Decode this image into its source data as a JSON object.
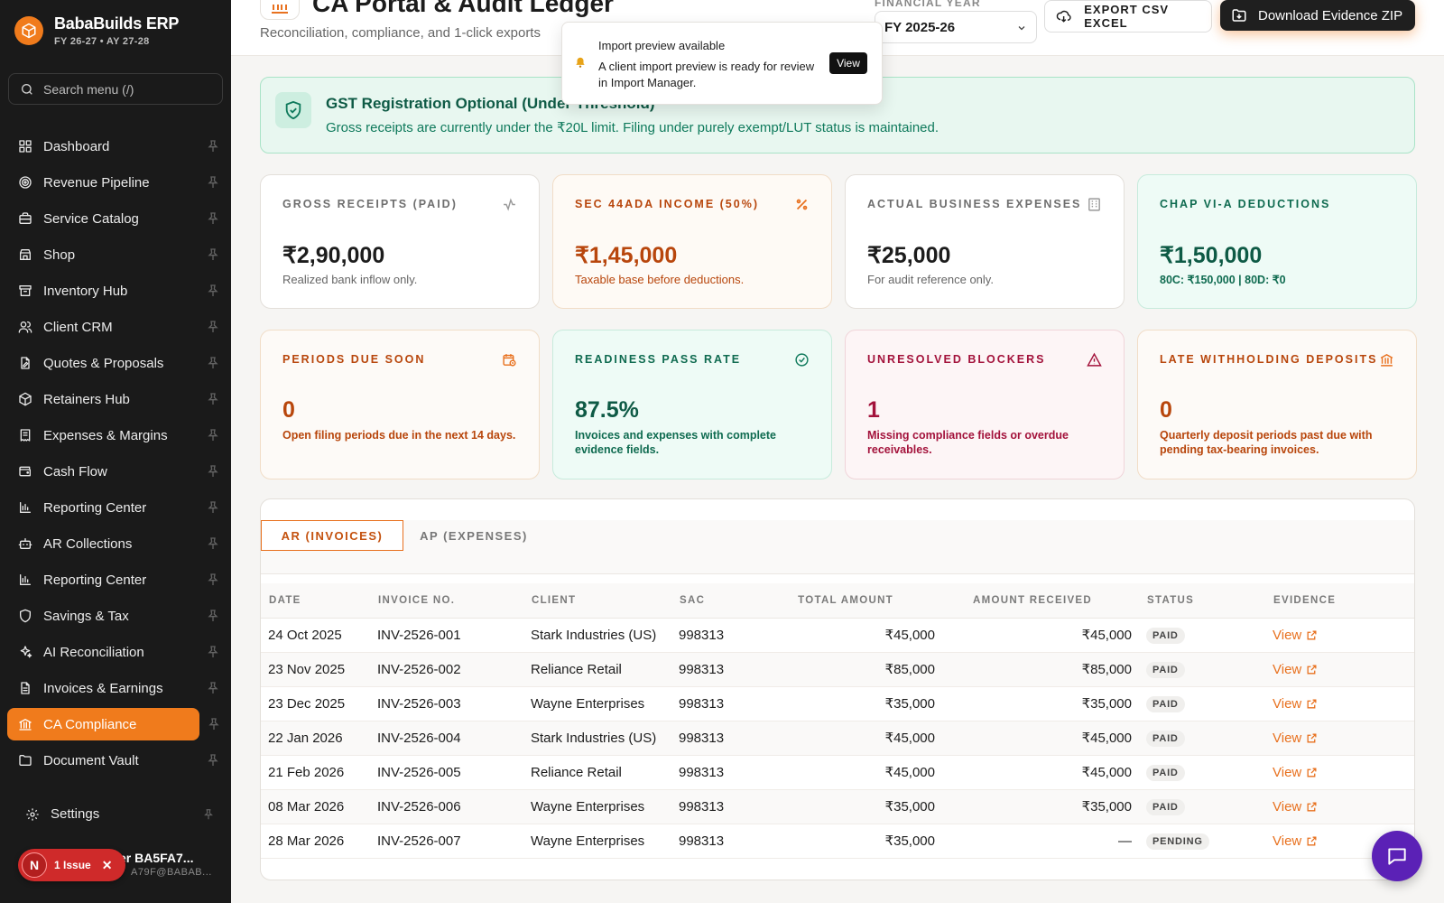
{
  "brand": {
    "name": "BabaBuilds ERP",
    "subtitle": "FY 26-27 • AY 27-28"
  },
  "search": {
    "placeholder": "Search menu (/)"
  },
  "sidebar": {
    "items": [
      {
        "label": "Dashboard",
        "icon": "dashboard-icon"
      },
      {
        "label": "Revenue Pipeline",
        "icon": "target-icon"
      },
      {
        "label": "Service Catalog",
        "icon": "briefcase-icon"
      },
      {
        "label": "Shop",
        "icon": "store-icon"
      },
      {
        "label": "Inventory Hub",
        "icon": "archive-icon"
      },
      {
        "label": "Client CRM",
        "icon": "users-icon"
      },
      {
        "label": "Quotes & Proposals",
        "icon": "file-edit-icon"
      },
      {
        "label": "Retainers Hub",
        "icon": "package-icon"
      },
      {
        "label": "Expenses & Margins",
        "icon": "receipt-icon"
      },
      {
        "label": "Cash Flow",
        "icon": "wallet-icon"
      },
      {
        "label": "Reporting Center",
        "icon": "bar-chart-icon"
      },
      {
        "label": "AR Collections",
        "icon": "bot-icon"
      },
      {
        "label": "Reporting Center",
        "icon": "bar-chart-icon"
      },
      {
        "label": "Savings & Tax",
        "icon": "shield-icon"
      },
      {
        "label": "AI Reconciliation",
        "icon": "sparkles-icon"
      },
      {
        "label": "Invoices & Earnings",
        "icon": "file-text-icon"
      },
      {
        "label": "CA Compliance",
        "icon": "landmark-icon",
        "active": true
      },
      {
        "label": "Document Vault",
        "icon": "folder-icon"
      }
    ],
    "settings_label": "Settings"
  },
  "user": {
    "name": "User BA5FA7...",
    "name_visible": "er BA5FA7...",
    "email_visible": "A79F@BABAB...",
    "issue_initial": "N",
    "issue_label": "1 Issue"
  },
  "header": {
    "title": "CA Portal & Audit Ledger",
    "subtitle": "Reconciliation, compliance, and 1-click exports",
    "fy_label": "FINANCIAL YEAR",
    "fy_value": "FY 2025-26",
    "export_label": "EXPORT CSV EXCEL",
    "zip_label": "Download Evidence ZIP"
  },
  "toast": {
    "title": "Import preview available",
    "message": "A client import preview is ready for review in Import Manager.",
    "action": "View"
  },
  "banner": {
    "title": "GST Registration Optional (Under Threshold)",
    "text": "Gross receipts are currently under the ₹20L limit. Filing under purely exempt/LUT status is maintained."
  },
  "kpis": [
    {
      "label": "GROSS RECEIPTS (PAID)",
      "value": "₹2,90,000",
      "note": "Realized bank inflow only."
    },
    {
      "label": "SEC 44ADA INCOME (50%)",
      "value": "₹1,45,000",
      "note": "Taxable base before deductions."
    },
    {
      "label": "ACTUAL BUSINESS EXPENSES",
      "value": "₹25,000",
      "note": "For audit reference only."
    },
    {
      "label": "CHAP VI-A DEDUCTIONS",
      "value": "₹1,50,000",
      "note": "80C: ₹150,000 | 80D: ₹0"
    },
    {
      "label": "PERIODS DUE SOON",
      "value": "0",
      "note": "Open filing periods due in the next 14 days."
    },
    {
      "label": "READINESS PASS RATE",
      "value": "87.5%",
      "note": "Invoices and expenses with complete evidence fields."
    },
    {
      "label": "UNRESOLVED BLOCKERS",
      "value": "1",
      "note": "Missing compliance fields or overdue receivables."
    },
    {
      "label": "LATE WITHHOLDING DEPOSITS",
      "value": "0",
      "note": "Quarterly deposit periods past due with pending tax-bearing invoices."
    }
  ],
  "tabs": {
    "ar": "AR (INVOICES)",
    "ap": "AP (EXPENSES)"
  },
  "table": {
    "headers": [
      "DATE",
      "INVOICE NO.",
      "CLIENT",
      "SAC",
      "TOTAL AMOUNT",
      "AMOUNT RECEIVED",
      "STATUS",
      "EVIDENCE"
    ],
    "rows": [
      {
        "date": "24 Oct 2025",
        "invoice": "INV-2526-001",
        "client": "Stark Industries (US)",
        "sac": "998313",
        "total": "₹45,000",
        "received": "₹45,000",
        "status": "PAID",
        "evidence": "View"
      },
      {
        "date": "23 Nov 2025",
        "invoice": "INV-2526-002",
        "client": "Reliance Retail",
        "sac": "998313",
        "total": "₹85,000",
        "received": "₹85,000",
        "status": "PAID",
        "evidence": "View"
      },
      {
        "date": "23 Dec 2025",
        "invoice": "INV-2526-003",
        "client": "Wayne Enterprises",
        "sac": "998313",
        "total": "₹35,000",
        "received": "₹35,000",
        "status": "PAID",
        "evidence": "View"
      },
      {
        "date": "22 Jan 2026",
        "invoice": "INV-2526-004",
        "client": "Stark Industries (US)",
        "sac": "998313",
        "total": "₹45,000",
        "received": "₹45,000",
        "status": "PAID",
        "evidence": "View"
      },
      {
        "date": "21 Feb 2026",
        "invoice": "INV-2526-005",
        "client": "Reliance Retail",
        "sac": "998313",
        "total": "₹45,000",
        "received": "₹45,000",
        "status": "PAID",
        "evidence": "View"
      },
      {
        "date": "08 Mar 2026",
        "invoice": "INV-2526-006",
        "client": "Wayne Enterprises",
        "sac": "998313",
        "total": "₹35,000",
        "received": "₹35,000",
        "status": "PAID",
        "evidence": "View"
      },
      {
        "date": "28 Mar 2026",
        "invoice": "INV-2526-007",
        "client": "Wayne Enterprises",
        "sac": "998313",
        "total": "₹35,000",
        "received": "—",
        "status": "PENDING",
        "evidence": "View"
      }
    ]
  },
  "colors": {
    "accent": "#f07b1c",
    "sidebar_bg": "#1a1a1a",
    "success": "#0f7a5c",
    "danger": "#a3123b",
    "chat": "#5b21b6"
  },
  "chat_icon": "chat-bubble-icon"
}
